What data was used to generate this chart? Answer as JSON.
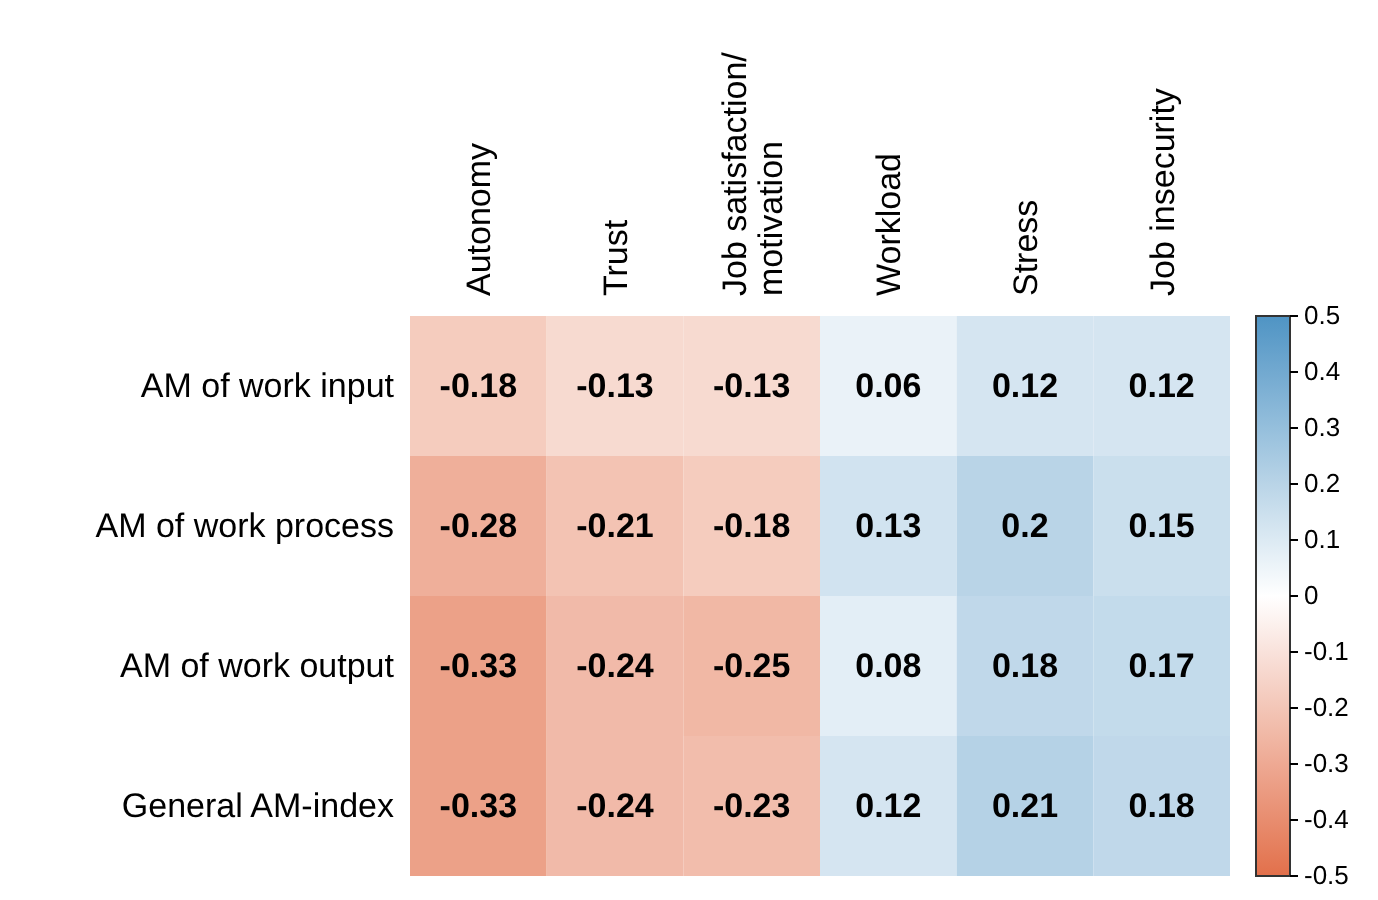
{
  "chart_data": {
    "type": "heatmap",
    "categories": [
      "Autonomy",
      "Trust",
      "Job satisfaction/motivation",
      "Workload",
      "Stress",
      "Job insecurity"
    ],
    "y_categories": [
      "AM of work input",
      "AM of work process",
      "AM of work output",
      "General AM-index"
    ],
    "cells": [
      [
        -0.18,
        -0.13,
        -0.13,
        0.06,
        0.12,
        0.12
      ],
      [
        -0.28,
        -0.21,
        -0.18,
        0.13,
        0.2,
        0.15
      ],
      [
        -0.33,
        -0.24,
        -0.25,
        0.08,
        0.18,
        0.17
      ],
      [
        -0.33,
        -0.24,
        -0.23,
        0.12,
        0.21,
        0.18
      ]
    ],
    "clim": [
      -0.5,
      0.5
    ],
    "cticks": [
      0.5,
      0.4,
      0.3,
      0.2,
      0.1,
      0,
      -0.1,
      -0.2,
      -0.3,
      -0.4,
      -0.5
    ],
    "data_labels": true
  }
}
